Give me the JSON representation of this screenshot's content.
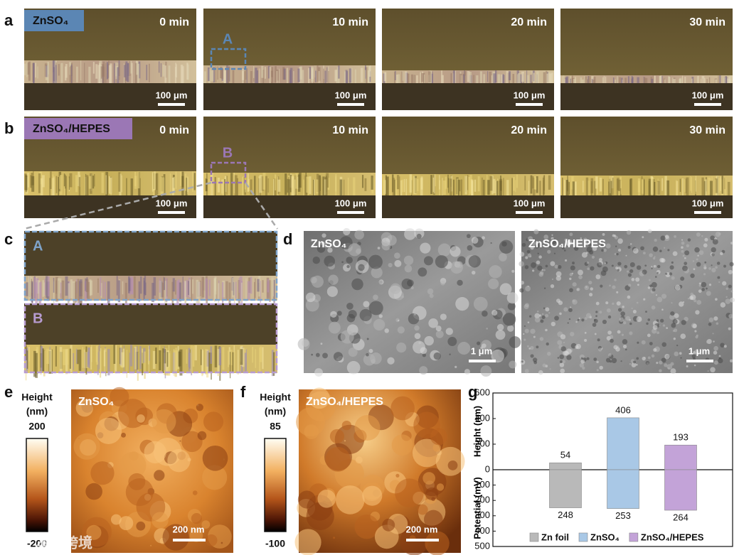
{
  "panel_a": {
    "label": "a",
    "electrolyte": "ZnSO₄",
    "times": [
      "0 min",
      "10 min",
      "20 min",
      "30 min"
    ],
    "scale_bar": "100 μm",
    "roi": "A"
  },
  "panel_b": {
    "label": "b",
    "electrolyte": "ZnSO₄/HEPES",
    "times": [
      "0 min",
      "10 min",
      "20 min",
      "30 min"
    ],
    "scale_bar": "100 μm",
    "roi": "B"
  },
  "panel_c": {
    "label": "c",
    "insets": [
      "A",
      "B"
    ]
  },
  "panel_d": {
    "label": "d",
    "images": [
      {
        "title": "ZnSO₄",
        "scale_bar": "1 μm"
      },
      {
        "title": "ZnSO₄/HEPES",
        "scale_bar": "1 μm"
      }
    ]
  },
  "panel_e": {
    "label": "e",
    "title": "ZnSO₄",
    "colorbar_label": [
      "Height",
      "(nm)"
    ],
    "colorbar_ticks": [
      200,
      -200
    ],
    "scale_bar": "200 nm"
  },
  "panel_f": {
    "label": "f",
    "title": "ZnSO₄/HEPES",
    "colorbar_label": [
      "Height",
      "(nm)"
    ],
    "colorbar_ticks": [
      85,
      -100
    ],
    "scale_bar": "200 nm"
  },
  "watermark": "本数跨境",
  "chart_data": {
    "type": "bar",
    "label": "g",
    "categories": [
      "Zn foil",
      "ZnSO₄",
      "ZnSO₄/HEPES"
    ],
    "colors": [
      "#b9b9b9",
      "#a9c8e6",
      "#c3a3d8"
    ],
    "values": [
      54,
      406,
      193
    ],
    "values2": [
      248,
      253,
      264
    ],
    "ylabel": "Height (nm)",
    "y2label": "Potential (mV)",
    "ylim": [
      0,
      600
    ],
    "yticks": [
      0,
      200,
      400,
      600
    ],
    "y2lim": [
      0,
      500
    ],
    "y2ticks": [
      100,
      200,
      300,
      400,
      500
    ],
    "y2_reversed": true
  }
}
